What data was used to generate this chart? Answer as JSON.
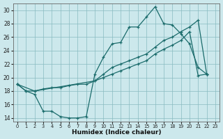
{
  "xlabel": "Humidex (Indice chaleur)",
  "bg_color": "#cce8ec",
  "grid_color": "#88bbc0",
  "line_color": "#1a6b6b",
  "xlim": [
    -0.5,
    23.5
  ],
  "ylim": [
    13.5,
    31.0
  ],
  "xticks": [
    0,
    1,
    2,
    3,
    4,
    5,
    6,
    7,
    8,
    9,
    10,
    11,
    12,
    13,
    14,
    15,
    16,
    17,
    18,
    19,
    20,
    21,
    22,
    23
  ],
  "yticks": [
    14,
    16,
    18,
    20,
    22,
    24,
    26,
    28,
    30
  ],
  "line1_x": [
    0,
    1,
    2,
    3,
    4,
    5,
    6,
    7,
    8,
    9,
    10,
    11,
    12,
    13,
    14,
    15,
    16,
    17,
    18,
    19,
    20,
    21,
    22
  ],
  "line1_y": [
    19,
    18,
    17.5,
    15,
    15,
    14.2,
    14,
    14,
    14.2,
    20.5,
    23,
    25,
    25.2,
    27.5,
    27.5,
    29,
    30.5,
    28.0,
    27.8,
    26.5,
    25.0,
    21.5,
    20.5
  ],
  "line2_x": [
    0,
    1,
    2,
    3,
    4,
    5,
    6,
    7,
    8,
    9,
    10,
    11,
    12,
    13,
    14,
    15,
    16,
    17,
    18,
    19,
    20,
    21,
    22
  ],
  "line2_y": [
    19,
    18,
    18,
    18.3,
    18.5,
    18.5,
    18.8,
    19.0,
    19.0,
    19.5,
    20.0,
    20.5,
    21.0,
    21.5,
    22.0,
    22.5,
    23.5,
    24.2,
    24.8,
    25.5,
    26.8,
    20.3,
    20.5
  ],
  "line3_x": [
    0,
    2,
    9,
    10,
    11,
    12,
    13,
    14,
    15,
    16,
    17,
    18,
    19,
    20,
    21,
    22
  ],
  "line3_y": [
    19,
    18,
    19.5,
    20.5,
    21.5,
    22.0,
    22.5,
    23.0,
    23.5,
    24.5,
    25.5,
    26.0,
    26.8,
    27.5,
    28.5,
    20.5
  ]
}
